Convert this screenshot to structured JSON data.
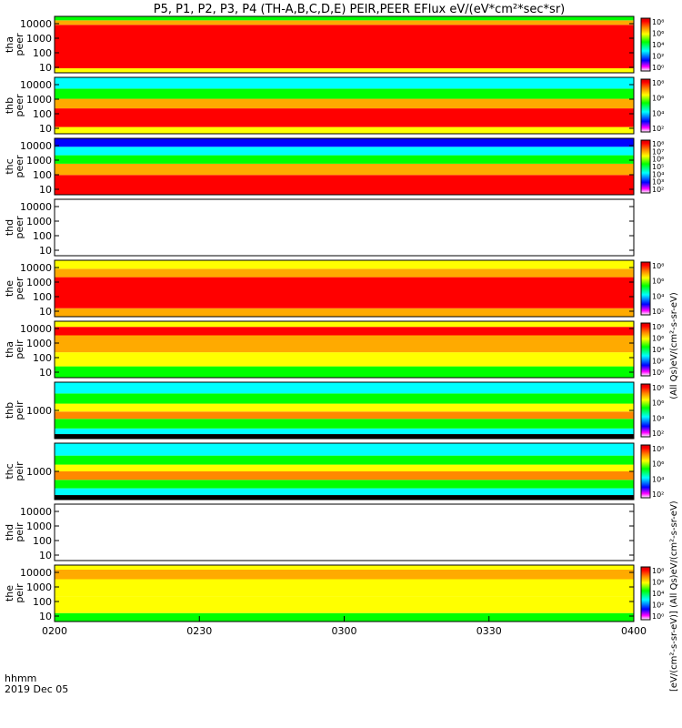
{
  "title": "P5, P1, P2, P3, P4 (TH-A,B,C,D,E) PEIR,PEER EFlux eV/(eV*cm²*sec*sr)",
  "colorbar_label_top": "(All Qs)eV/(cm²-s-sr-eV)",
  "colorbar_label_bottom": "[eV/(cm²-s-sr-eV)] (All Qs)eV/(cm²-s-sr-eV)",
  "chart_data": {
    "type": "heatmap",
    "time_label_row": "hhmm",
    "date_label": "2019 Dec 05",
    "x_ticks": [
      "0200",
      "0230",
      "0300",
      "0330",
      "0400"
    ],
    "x_range": [
      "0200",
      "0400"
    ],
    "colorbar_stops": [
      "#ffffff",
      "#ff00ff",
      "#0000ff",
      "#00ffff",
      "#00ff00",
      "#ffff00",
      "#ff8800",
      "#ff0000",
      "#cc0000"
    ],
    "panels": [
      {
        "name": "tha peer",
        "ylabel": [
          "tha",
          "peer"
        ],
        "yticks": [
          "10",
          "100",
          "1000",
          "10000"
        ],
        "colorbar": true,
        "cb_ticks": [
          "10⁸",
          "10⁶",
          "10⁴",
          "10²",
          "10⁰"
        ],
        "empty": false
      },
      {
        "name": "thb peer",
        "ylabel": [
          "thb",
          "peer"
        ],
        "yticks": [
          "10",
          "100",
          "1000",
          "10000"
        ],
        "colorbar": true,
        "cb_ticks": [
          "10⁸",
          "10⁶",
          "10⁴",
          "10²"
        ],
        "empty": false
      },
      {
        "name": "thc peer",
        "ylabel": [
          "thc",
          "peer"
        ],
        "yticks": [
          "10",
          "100",
          "1000",
          "10000"
        ],
        "colorbar": true,
        "cb_ticks": [
          "10⁸",
          "10⁷",
          "10⁶",
          "10⁵",
          "10⁴",
          "10³",
          "10²"
        ],
        "empty": false
      },
      {
        "name": "thd peer",
        "ylabel": [
          "thd",
          "peer"
        ],
        "yticks": [
          "10",
          "100",
          "1000",
          "10000"
        ],
        "colorbar": false,
        "cb_ticks": [],
        "empty": true
      },
      {
        "name": "the peer",
        "ylabel": [
          "the",
          "peer"
        ],
        "yticks": [
          "10",
          "100",
          "1000",
          "10000"
        ],
        "colorbar": true,
        "cb_ticks": [
          "10⁸",
          "10⁶",
          "10⁴",
          "10²"
        ],
        "empty": false
      },
      {
        "name": "tha peir",
        "ylabel": [
          "tha",
          "peir"
        ],
        "yticks": [
          "10",
          "100",
          "1000",
          "10000"
        ],
        "colorbar": true,
        "cb_ticks": [
          "10⁸",
          "10⁶",
          "10⁴",
          "10²",
          "10⁰"
        ],
        "empty": false
      },
      {
        "name": "thb peir",
        "ylabel": [
          "thb",
          "peir"
        ],
        "yticks": [
          "1000"
        ],
        "colorbar": true,
        "cb_ticks": [
          "10⁸",
          "10⁶",
          "10⁴",
          "10²"
        ],
        "empty": false
      },
      {
        "name": "thc peir",
        "ylabel": [
          "thc",
          "peir"
        ],
        "yticks": [
          "1000"
        ],
        "colorbar": true,
        "cb_ticks": [
          "10⁸",
          "10⁶",
          "10⁴",
          "10²"
        ],
        "empty": false
      },
      {
        "name": "thd peir",
        "ylabel": [
          "thd",
          "peir"
        ],
        "yticks": [
          "10",
          "100",
          "1000",
          "10000"
        ],
        "colorbar": false,
        "cb_ticks": [],
        "empty": true
      },
      {
        "name": "the peir",
        "ylabel": [
          "the",
          "peir"
        ],
        "yticks": [
          "10",
          "100",
          "1000",
          "10000"
        ],
        "colorbar": true,
        "cb_ticks": [
          "10⁸",
          "10⁶",
          "10⁴",
          "10²",
          "10⁰"
        ],
        "empty": false
      }
    ]
  }
}
